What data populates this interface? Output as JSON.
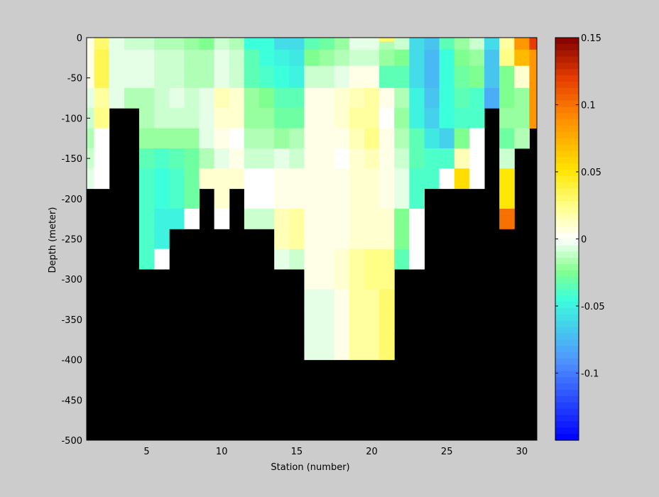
{
  "chart_data": {
    "type": "heatmap",
    "xlabel": "Station (number)",
    "ylabel": "Depth (meter)",
    "xlim": [
      1,
      31
    ],
    "ylim": [
      -500,
      0
    ],
    "x_ticks": [
      5,
      10,
      15,
      20,
      25,
      30
    ],
    "y_ticks": [
      0,
      -50,
      -100,
      -150,
      -200,
      -250,
      -300,
      -350,
      -400,
      -450,
      -500
    ],
    "colorbar": {
      "range": [
        -0.15,
        0.15
      ],
      "ticks": [
        0.15,
        0.1,
        0.05,
        0,
        -0.05,
        -0.1
      ],
      "tick_labels": [
        "0.15",
        "0.1",
        "0.05",
        "0",
        "-0.05",
        "-0.1"
      ],
      "colormap": "jet-white-centered"
    },
    "missing_color": "#000000",
    "stations": [
      1,
      2,
      3,
      4,
      5,
      6,
      7,
      8,
      9,
      10,
      11,
      12,
      13,
      14,
      15,
      16,
      17,
      18,
      19,
      20,
      21,
      22,
      23,
      24,
      25,
      26,
      27,
      28,
      29,
      30,
      31
    ],
    "depth_levels": [
      -2.5,
      -10,
      -25,
      -50,
      -75,
      -100,
      -125,
      -150,
      -175,
      -200,
      -225,
      -250,
      -275,
      -300,
      -325,
      -350,
      -375,
      -400
    ],
    "depth_bounds": [
      0,
      -5,
      -15,
      -35,
      -62.5,
      -87.5,
      -112.5,
      -137.5,
      -162.5,
      -187.5,
      -212.5,
      -237.5,
      -262.5,
      -287.5,
      -312.5,
      -337.5,
      -362.5,
      -387.5,
      -400
    ],
    "max_depth_per_station": [
      -200,
      -200,
      -100,
      -100,
      -300,
      -300,
      -250,
      -250,
      -200,
      -250,
      -200,
      -250,
      -250,
      -300,
      -300,
      -400,
      -400,
      -400,
      -400,
      -400,
      -400,
      -300,
      -300,
      -200,
      -200,
      -200,
      -200,
      -100,
      -250,
      -150,
      -125
    ],
    "values": [
      [
        0.005,
        0.03,
        -0.005,
        -0.01,
        -0.01,
        -0.015,
        -0.015,
        -0.02,
        -0.025,
        -0.01,
        -0.015,
        -0.045,
        -0.045,
        -0.06,
        -0.06,
        -0.035,
        -0.03,
        -0.02,
        -0.005,
        -0.005,
        0.03,
        -0.01,
        -0.06,
        -0.07,
        -0.035,
        -0.02,
        -0.01,
        -0.06,
        0.02,
        0.085,
        0.12
      ],
      [
        0.005,
        0.03,
        -0.005,
        -0.01,
        -0.01,
        -0.015,
        -0.015,
        -0.02,
        -0.025,
        -0.01,
        -0.015,
        -0.045,
        -0.045,
        -0.06,
        -0.06,
        -0.035,
        -0.03,
        -0.02,
        -0.005,
        -0.005,
        -0.015,
        -0.01,
        -0.06,
        -0.07,
        -0.035,
        -0.02,
        -0.01,
        -0.06,
        0.02,
        0.085,
        0.12
      ],
      [
        0.005,
        0.035,
        -0.005,
        -0.005,
        -0.005,
        -0.01,
        -0.01,
        -0.015,
        -0.015,
        -0.005,
        -0.01,
        -0.035,
        -0.045,
        -0.05,
        -0.055,
        -0.025,
        -0.02,
        -0.015,
        -0.01,
        -0.01,
        -0.02,
        -0.025,
        -0.06,
        -0.075,
        -0.045,
        -0.025,
        -0.02,
        -0.07,
        0.025,
        0.07,
        0.085
      ],
      [
        0.005,
        0.035,
        -0.005,
        -0.005,
        -0.005,
        -0.01,
        -0.01,
        -0.015,
        -0.015,
        -0.005,
        -0.01,
        -0.035,
        -0.04,
        -0.045,
        -0.05,
        -0.01,
        -0.01,
        -0.005,
        0.005,
        0.005,
        -0.035,
        -0.035,
        -0.06,
        -0.075,
        -0.045,
        -0.03,
        -0.025,
        -0.07,
        -0.025,
        0.01,
        0.085
      ],
      [
        -0.005,
        0.02,
        -0.005,
        -0.015,
        -0.015,
        -0.01,
        -0.005,
        -0.01,
        -0.005,
        0.015,
        0.01,
        -0.02,
        -0.025,
        -0.035,
        -0.035,
        0.005,
        0.005,
        0.01,
        0.015,
        0.02,
        0.005,
        -0.015,
        -0.05,
        -0.07,
        -0.045,
        -0.035,
        -0.04,
        -0.08,
        -0.025,
        -0.02,
        0.085
      ],
      [
        -0.01,
        0.025,
        -0.005,
        -0.015,
        -0.015,
        -0.01,
        -0.01,
        -0.01,
        -0.005,
        0.01,
        0.01,
        -0.02,
        -0.02,
        -0.03,
        -0.03,
        0.005,
        0.005,
        0.01,
        0.02,
        0.02,
        0.0,
        -0.02,
        -0.05,
        -0.065,
        -0.045,
        -0.04,
        -0.04,
        -0.06,
        -0.02,
        -0.02,
        0.085
      ],
      [
        -0.015,
        0.0,
        0.0,
        -0.02,
        -0.02,
        -0.02,
        -0.02,
        -0.02,
        -0.005,
        0.005,
        0.0,
        -0.015,
        -0.015,
        -0.02,
        -0.015,
        0.005,
        0.005,
        0.005,
        0.015,
        0.025,
        0.005,
        -0.015,
        -0.035,
        -0.055,
        -0.065,
        -0.025,
        0.0,
        0.0,
        -0.03,
        -0.015,
        0.1
      ],
      [
        -0.01,
        0.0,
        0.0,
        -0.035,
        -0.035,
        -0.04,
        -0.035,
        -0.03,
        -0.015,
        -0.005,
        0.005,
        -0.01,
        -0.01,
        -0.005,
        -0.01,
        0.005,
        0.005,
        0.0,
        0.01,
        0.015,
        0.005,
        -0.01,
        -0.035,
        -0.04,
        -0.04,
        0.015,
        0.0,
        0.0,
        -0.01,
        0.0,
        0.0
      ],
      [
        -0.005,
        0.0,
        0.0,
        -0.04,
        -0.04,
        -0.045,
        -0.04,
        -0.03,
        0.01,
        0.01,
        0.01,
        0.0,
        0.0,
        0.005,
        0.005,
        0.005,
        0.005,
        0.005,
        0.01,
        0.01,
        0.005,
        -0.005,
        -0.04,
        -0.04,
        0.0,
        0.055,
        0.0,
        0.0,
        0.05,
        0.0,
        0.0
      ],
      [
        -0.005,
        0.0,
        0.0,
        -0.04,
        -0.04,
        -0.045,
        -0.04,
        -0.03,
        0.01,
        0.01,
        0.01,
        0.0,
        0.0,
        0.005,
        0.005,
        0.005,
        0.005,
        0.005,
        0.01,
        0.01,
        0.005,
        -0.005,
        -0.04,
        -0.04,
        0.0,
        0.055,
        0.0,
        0.0,
        0.05,
        0.0,
        0.0
      ],
      [
        0.0,
        0.0,
        0.0,
        -0.04,
        -0.04,
        -0.05,
        -0.05,
        0.0,
        0.0,
        0.0,
        0.0,
        -0.01,
        -0.01,
        0.015,
        0.02,
        0.005,
        0.005,
        0.005,
        0.01,
        0.01,
        0.01,
        -0.025,
        0.0,
        0.0,
        0.0,
        0.0,
        0.0,
        0.0,
        0.1,
        0.0,
        0.0
      ],
      [
        0.0,
        0.0,
        0.0,
        -0.04,
        -0.04,
        -0.05,
        -0.05,
        0.0,
        0.0,
        0.0,
        0.0,
        -0.01,
        -0.01,
        0.015,
        0.02,
        0.005,
        0.005,
        0.005,
        0.01,
        0.01,
        0.01,
        -0.025,
        0.0,
        0.0,
        0.0,
        0.0,
        0.0,
        0.0,
        0.1,
        0.0,
        0.0
      ],
      [
        0.0,
        0.0,
        0.0,
        -0.04,
        -0.04,
        0.0,
        0.0,
        0.0,
        0.0,
        0.0,
        0.0,
        0.0,
        0.0,
        -0.005,
        -0.01,
        0.005,
        0.005,
        0.01,
        0.02,
        0.025,
        0.025,
        -0.035,
        0.0,
        0.0,
        0.0,
        0.0,
        0.0,
        0.0,
        0.0,
        0.0,
        0.0
      ],
      [
        0.0,
        0.0,
        0.0,
        -0.04,
        -0.04,
        0.0,
        0.0,
        0.0,
        0.0,
        0.0,
        0.0,
        0.0,
        0.0,
        -0.005,
        -0.01,
        0.005,
        0.005,
        0.01,
        0.02,
        0.025,
        0.025,
        -0.035,
        0.0,
        0.0,
        0.0,
        0.0,
        0.0,
        0.0,
        0.0,
        0.0,
        0.0
      ],
      [
        0.0,
        0.0,
        0.0,
        0.0,
        0.0,
        0.0,
        0.0,
        0.0,
        0.0,
        0.0,
        0.0,
        0.0,
        0.0,
        0.0,
        0.0,
        -0.005,
        -0.005,
        0.005,
        0.02,
        0.02,
        0.03,
        0.0,
        0.0,
        0.0,
        0.0,
        0.0,
        0.0,
        0.0,
        0.0,
        0.0,
        0.0
      ],
      [
        0.0,
        0.0,
        0.0,
        0.0,
        0.0,
        0.0,
        0.0,
        0.0,
        0.0,
        0.0,
        0.0,
        0.0,
        0.0,
        0.0,
        0.0,
        -0.005,
        -0.005,
        0.005,
        0.02,
        0.02,
        0.03,
        0.0,
        0.0,
        0.0,
        0.0,
        0.0,
        0.0,
        0.0,
        0.0,
        0.0,
        0.0
      ],
      [
        0.0,
        0.0,
        0.0,
        0.0,
        0.0,
        0.0,
        0.0,
        0.0,
        0.0,
        0.0,
        0.0,
        0.0,
        0.0,
        0.0,
        0.0,
        -0.005,
        -0.005,
        0.005,
        0.02,
        0.02,
        0.03,
        0.0,
        0.0,
        0.0,
        0.0,
        0.0,
        0.0,
        0.0,
        0.0,
        0.0,
        0.0
      ],
      [
        0.0,
        0.0,
        0.0,
        0.0,
        0.0,
        0.0,
        0.0,
        0.0,
        0.0,
        0.0,
        0.0,
        0.0,
        0.0,
        0.0,
        0.0,
        -0.005,
        -0.005,
        0.005,
        0.02,
        0.02,
        0.03,
        0.0,
        0.0,
        0.0,
        0.0,
        0.0,
        0.0,
        0.0,
        0.0,
        0.0,
        0.0
      ]
    ]
  }
}
